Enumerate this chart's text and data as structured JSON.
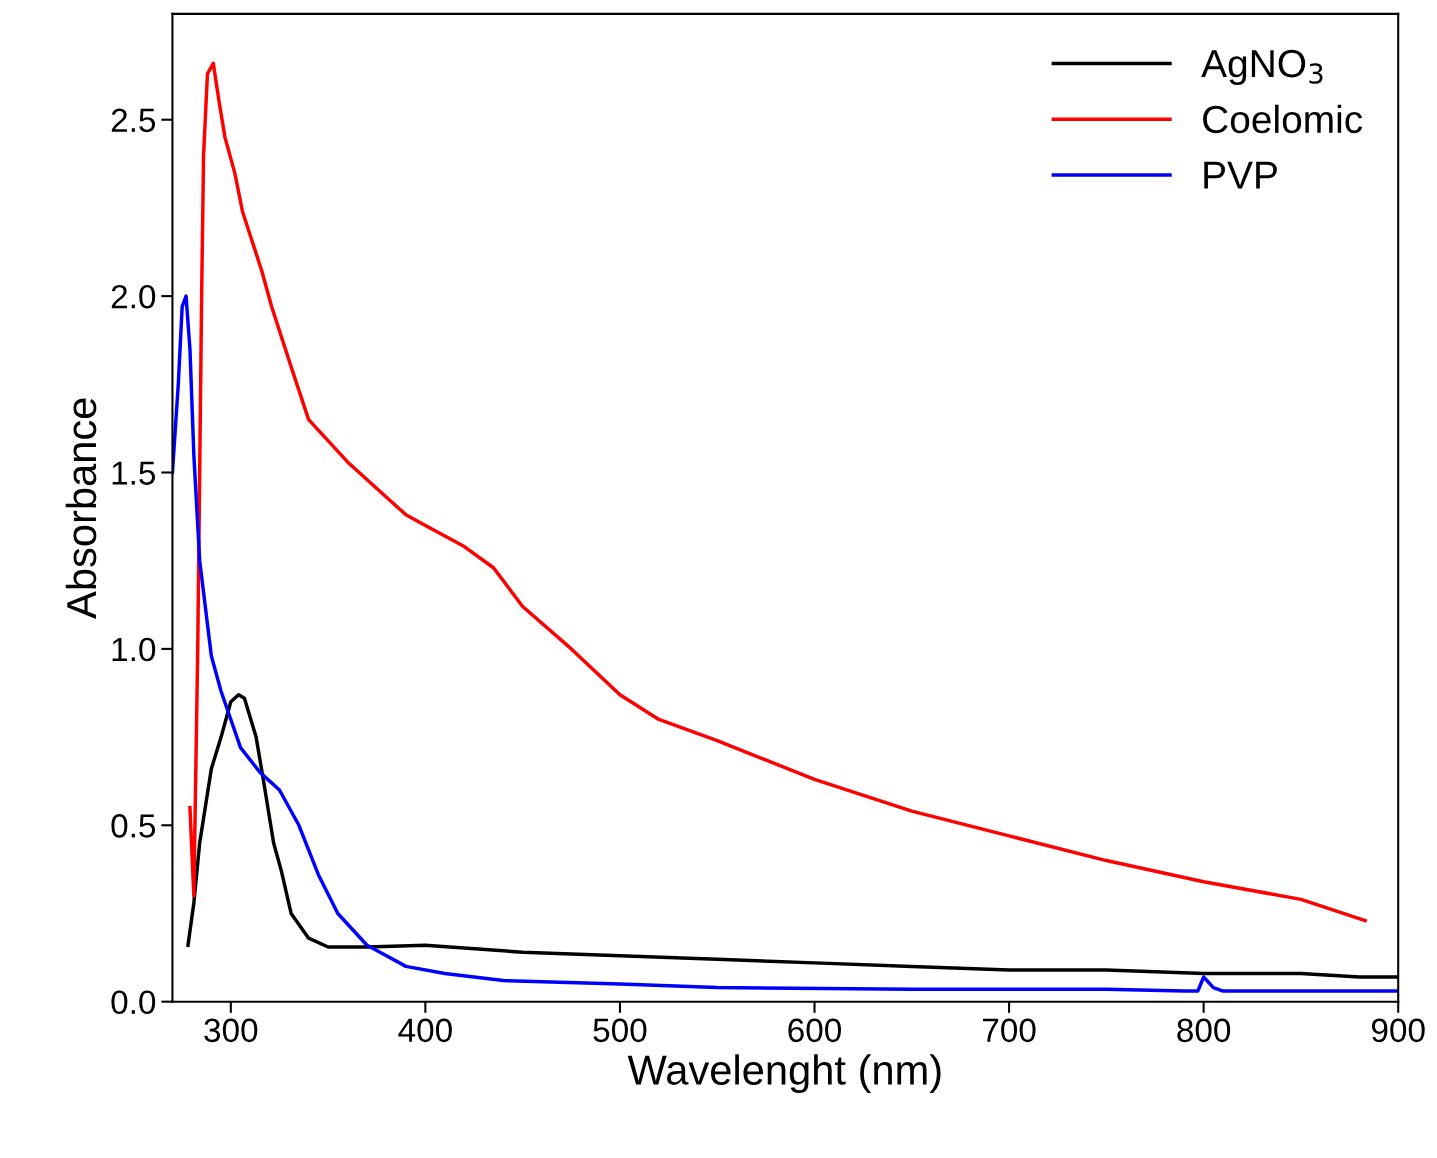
{
  "chart_data": {
    "type": "line",
    "xlabel": "Wavelenght (nm)",
    "ylabel": "Absorbance",
    "xlim": [
      270,
      900
    ],
    "ylim": [
      0,
      2.8
    ],
    "xticks": [
      300,
      400,
      500,
      600,
      700,
      800,
      900
    ],
    "yticks": [
      {
        "value": 0,
        "label": "0.0"
      },
      {
        "value": 0.5,
        "label": "0.5"
      },
      {
        "value": 1,
        "label": "1.0"
      },
      {
        "value": 1.5,
        "label": "1.5"
      },
      {
        "value": 2,
        "label": "2.0"
      },
      {
        "value": 2.5,
        "label": "2.5"
      }
    ],
    "legend": "top right",
    "grid": false,
    "series": [
      {
        "name": "AgNO$_{3}$",
        "color": "#000000",
        "x": [
          278,
          281,
          284,
          290,
          295,
          300,
          304,
          307,
          313,
          317,
          322,
          326,
          331,
          340,
          350,
          370,
          400,
          450,
          500,
          550,
          600,
          650,
          700,
          750,
          800,
          850,
          880,
          900
        ],
        "values": [
          0.16,
          0.28,
          0.45,
          0.66,
          0.75,
          0.85,
          0.87,
          0.86,
          0.75,
          0.62,
          0.45,
          0.37,
          0.25,
          0.18,
          0.155,
          0.155,
          0.16,
          0.14,
          0.13,
          0.12,
          0.11,
          0.1,
          0.09,
          0.09,
          0.08,
          0.08,
          0.07,
          0.07
        ]
      },
      {
        "name": "Coelomic",
        "color": "#ff0000",
        "x": [
          279,
          281,
          283,
          285,
          286,
          288,
          291,
          294,
          297,
          302,
          306,
          316,
          321,
          331,
          340,
          360,
          380,
          390,
          400,
          420,
          435,
          450,
          475,
          500,
          520,
          550,
          600,
          650,
          700,
          750,
          800,
          850,
          883
        ],
        "values": [
          0.55,
          0.3,
          1.0,
          2.0,
          2.4,
          2.63,
          2.66,
          2.55,
          2.45,
          2.35,
          2.24,
          2.07,
          1.97,
          1.8,
          1.65,
          1.53,
          1.43,
          1.38,
          1.35,
          1.29,
          1.23,
          1.12,
          1.0,
          0.87,
          0.8,
          0.74,
          0.63,
          0.54,
          0.47,
          0.4,
          0.34,
          0.29,
          0.23
        ]
      },
      {
        "name": "PVP",
        "color": "#0000ff",
        "x": [
          270,
          273,
          275,
          277,
          279,
          281,
          284,
          290,
          295,
          300,
          305,
          315,
          325,
          335,
          345,
          355,
          370,
          380,
          390,
          410,
          440,
          500,
          550,
          650,
          750,
          790,
          797,
          800,
          805,
          810,
          900
        ],
        "values": [
          1.5,
          1.75,
          1.97,
          2.0,
          1.85,
          1.55,
          1.25,
          0.98,
          0.88,
          0.8,
          0.72,
          0.65,
          0.6,
          0.5,
          0.36,
          0.25,
          0.16,
          0.13,
          0.1,
          0.08,
          0.06,
          0.05,
          0.04,
          0.035,
          0.035,
          0.03,
          0.03,
          0.07,
          0.04,
          0.03,
          0.03
        ]
      }
    ]
  }
}
